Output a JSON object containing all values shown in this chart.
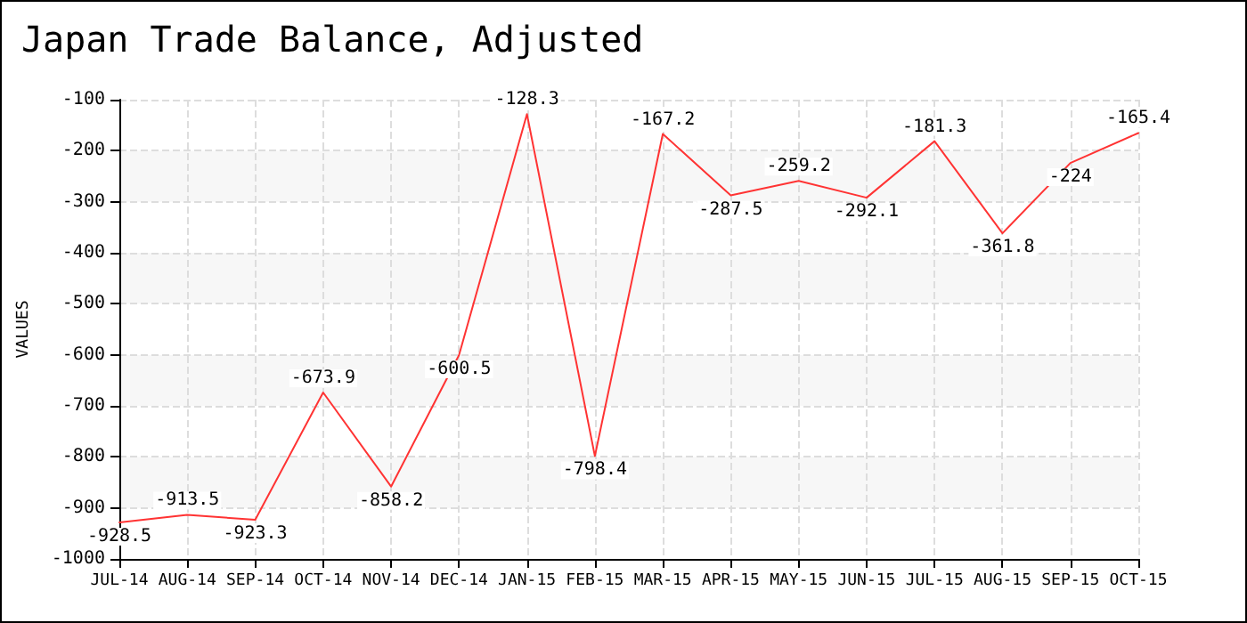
{
  "chart_data": {
    "type": "line",
    "title": "Japan Trade Balance, Adjusted",
    "ylabel": "VALUES",
    "categories": [
      "JUL-14",
      "AUG-14",
      "SEP-14",
      "OCT-14",
      "NOV-14",
      "DEC-14",
      "JAN-15",
      "FEB-15",
      "MAR-15",
      "APR-15",
      "MAY-15",
      "JUN-15",
      "JUL-15",
      "AUG-15",
      "SEP-15",
      "OCT-15"
    ],
    "series": [
      {
        "color": "#ff3333",
        "values": [
          -928.5,
          -913.5,
          -923.3,
          -673.9,
          -858.2,
          -600.5,
          -128.3,
          -798.4,
          -167.2,
          -287.5,
          -259.2,
          -292.1,
          -181.3,
          -361.8,
          -224,
          -165.4
        ]
      }
    ],
    "ylim": [
      -1000,
      -100
    ],
    "yticks": [
      -1000,
      -900,
      -800,
      -700,
      -600,
      -500,
      -400,
      -300,
      -200,
      -100
    ],
    "grid": true,
    "marker": "none",
    "line_style": "solid",
    "data_labels": true
  }
}
